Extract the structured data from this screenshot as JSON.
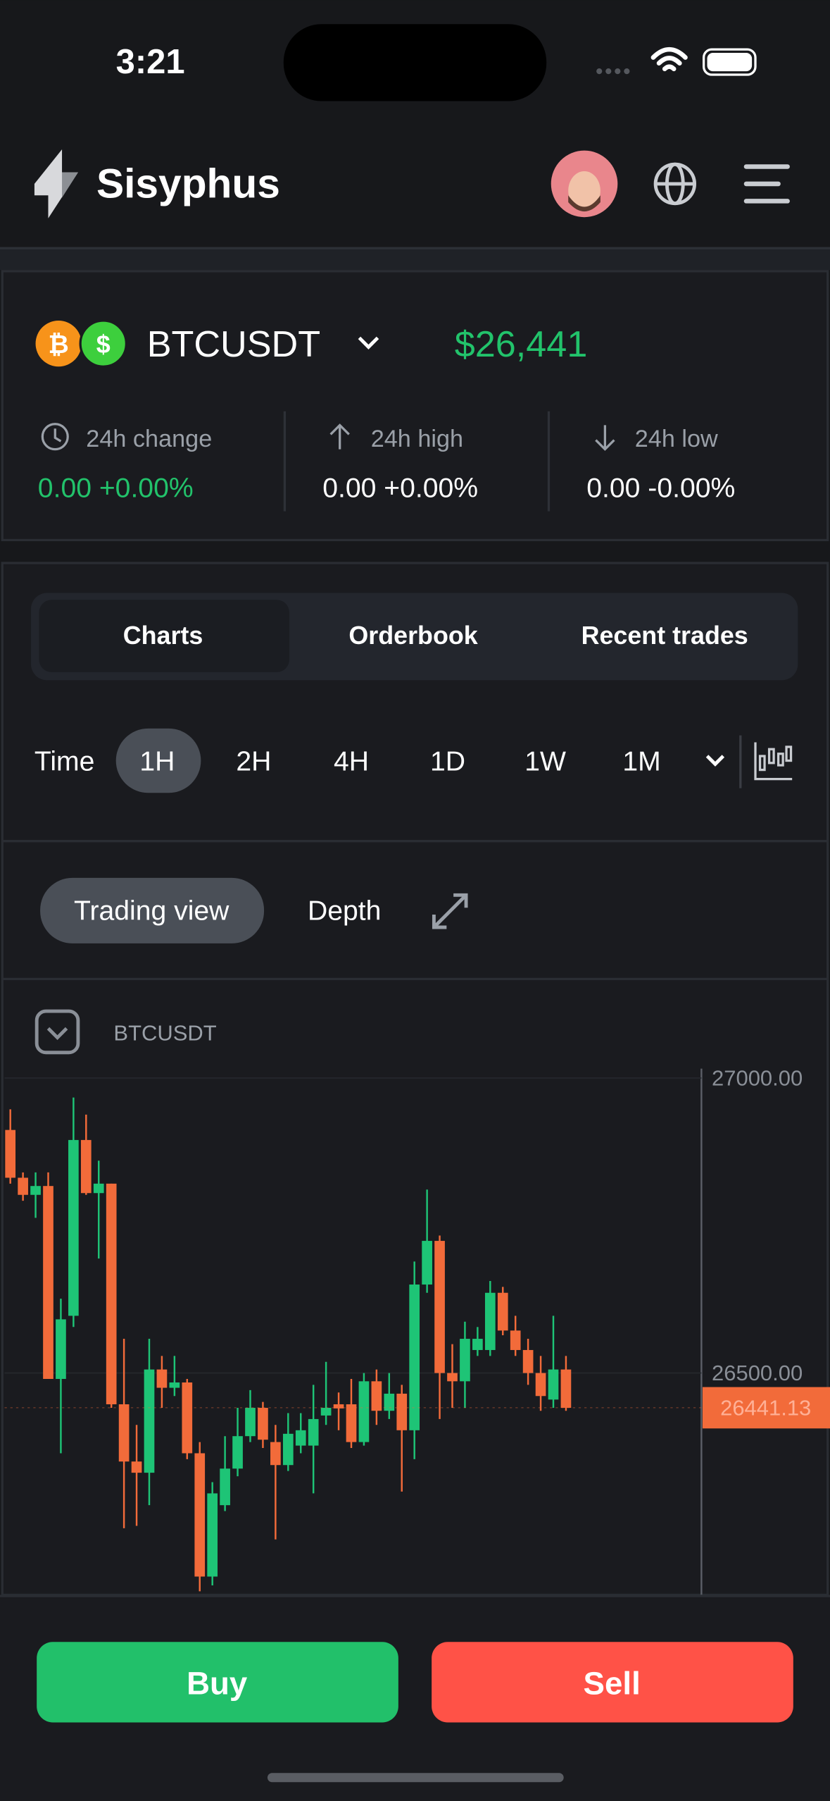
{
  "status_bar": {
    "time": "3:21"
  },
  "header": {
    "brand": "Sisyphus"
  },
  "ticker": {
    "pair": "BTCUSDT",
    "price": "$26,441",
    "stats": [
      {
        "label": "24h change",
        "value": "0.00 +0.00%"
      },
      {
        "label": "24h high",
        "value": "0.00 +0.00%"
      },
      {
        "label": "24h low",
        "value": "0.00 -0.00%"
      }
    ]
  },
  "tabs": [
    "Charts",
    "Orderbook",
    "Recent trades"
  ],
  "time_filter": {
    "label": "Time",
    "options": [
      "1H",
      "2H",
      "4H",
      "1D",
      "1W",
      "1M"
    ]
  },
  "view_toggle": [
    "Trading view",
    "Depth"
  ],
  "chart_data": {
    "type": "candlestick",
    "title": "BTCUSDT",
    "categories": [
      null,
      null,
      null,
      null,
      null,
      null,
      null,
      null,
      null,
      null,
      null,
      null,
      null,
      null,
      null,
      null,
      null,
      null,
      null,
      null,
      null,
      null,
      null,
      null,
      null,
      null,
      null,
      null,
      null,
      null,
      null,
      null,
      null,
      null,
      null,
      null,
      null,
      null,
      null,
      null,
      null,
      null,
      null,
      null,
      null
    ],
    "open": [
      26912,
      26831,
      26802,
      26817,
      26490,
      26597,
      26895,
      26805,
      26821,
      26447,
      26350,
      26331,
      26506,
      26475,
      26484,
      26364,
      26155,
      26276,
      26338,
      26393,
      26441,
      26383,
      26344,
      26377,
      26377,
      26428,
      26447,
      26447,
      26383,
      26486,
      26436,
      26465,
      26403,
      26650,
      26724,
      26500,
      26486,
      26539,
      26539,
      26636,
      26572,
      26539,
      26500,
      26455,
      26506
    ],
    "high": [
      26947,
      26840,
      26840,
      26840,
      26626,
      26967,
      26938,
      26860,
      26821,
      26558,
      26412,
      26558,
      26529,
      26529,
      26490,
      26383,
      26315,
      26393,
      26441,
      26471,
      26451,
      26412,
      26432,
      26432,
      26480,
      26519,
      26467,
      26490,
      26500,
      26506,
      26500,
      26480,
      26689,
      26811,
      26733,
      26549,
      26587,
      26578,
      26656,
      26646,
      26597,
      26558,
      26529,
      26597,
      26529
    ],
    "low": [
      26821,
      26792,
      26763,
      26490,
      26364,
      26578,
      26802,
      26694,
      26441,
      26237,
      26241,
      26276,
      26441,
      26461,
      26354,
      26130,
      26140,
      26266,
      26325,
      26383,
      26373,
      26218,
      26334,
      26364,
      26296,
      26412,
      26403,
      26373,
      26377,
      26412,
      26422,
      26299,
      26354,
      26636,
      26422,
      26441,
      26441,
      26529,
      26529,
      26564,
      26529,
      26480,
      26436,
      26441,
      26436
    ],
    "close": [
      26831,
      26802,
      26817,
      26490,
      26591,
      26895,
      26805,
      26821,
      26447,
      26350,
      26331,
      26506,
      26475,
      26484,
      26364,
      26155,
      26296,
      26338,
      26393,
      26441,
      26387,
      26344,
      26397,
      26403,
      26422,
      26441,
      26440,
      26383,
      26486,
      26436,
      26465,
      26403,
      26650,
      26724,
      26500,
      26486,
      26558,
      26558,
      26636,
      26572,
      26539,
      26500,
      26461,
      26506,
      26441
    ],
    "up_color": "#1ec476",
    "down_color": "#f26b3a",
    "ylim": [
      26124,
      27016
    ],
    "yticks": [
      {
        "value": 26500,
        "label": "26500.00"
      },
      {
        "value": 27000,
        "label": "27000.00"
      }
    ],
    "grid": true,
    "last_price": 26441.13
  },
  "actions": {
    "buy": "Buy",
    "sell": "Sell"
  }
}
